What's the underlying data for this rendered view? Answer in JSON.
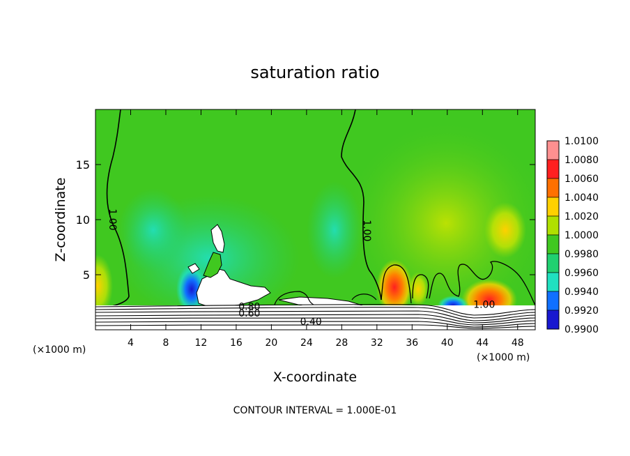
{
  "chart_data": {
    "type": "heatmap",
    "title": "saturation ratio",
    "xlabel": "X-coordinate",
    "ylabel": "Z-coordinate",
    "x_unit_left": "(×1000 m)",
    "x_unit_right": "(×1000 m)",
    "xlim": [
      0,
      50
    ],
    "ylim": [
      0,
      20
    ],
    "xticks": [
      4,
      8,
      12,
      16,
      20,
      24,
      28,
      32,
      36,
      40,
      44,
      48
    ],
    "yticks": [
      5,
      10,
      15
    ],
    "footer": "CONTOUR INTERVAL = 1.000E-01",
    "colorbar": {
      "levels": [
        "1.0100",
        "1.0080",
        "1.0060",
        "1.0040",
        "1.0020",
        "1.0000",
        "0.9980",
        "0.9960",
        "0.9940",
        "0.9920",
        "0.9900"
      ],
      "colors": [
        "#ff9090",
        "#ff2020",
        "#ff7000",
        "#ffd000",
        "#b0e000",
        "#40c820",
        "#20d070",
        "#20e0c0",
        "#1070ff",
        "#1818d0",
        "#6020a0"
      ]
    },
    "contour_labels": [
      {
        "text": "1.00",
        "x": 1.6,
        "z": 10.0
      },
      {
        "text": "1.00",
        "x": 30.5,
        "z": 9.0
      },
      {
        "text": "1.00",
        "x": 44.2,
        "z": 2.0
      },
      {
        "text": "0.80",
        "x": 17.5,
        "z": 1.8
      },
      {
        "text": "0.60",
        "x": 17.5,
        "z": 1.2
      },
      {
        "text": "0.40",
        "x": 24.5,
        "z": 0.45
      }
    ],
    "features": [
      {
        "kind": "moist",
        "x": 34.0,
        "z": 4.0,
        "value": 1.006
      },
      {
        "kind": "moist",
        "x": 44.5,
        "z": 2.6,
        "value": 1.008
      },
      {
        "kind": "moist",
        "x": 1.0,
        "z": 4.0,
        "value": 1.003
      },
      {
        "kind": "moist",
        "x": 46.5,
        "z": 9.0,
        "value": 1.003
      },
      {
        "kind": "dry",
        "x": 41.0,
        "z": 2.4,
        "value": 0.993
      },
      {
        "kind": "dry",
        "x": 11.0,
        "z": 3.0,
        "value": 0.994
      },
      {
        "kind": "dry",
        "x": 27.0,
        "z": 8.5,
        "value": 0.997
      }
    ]
  }
}
